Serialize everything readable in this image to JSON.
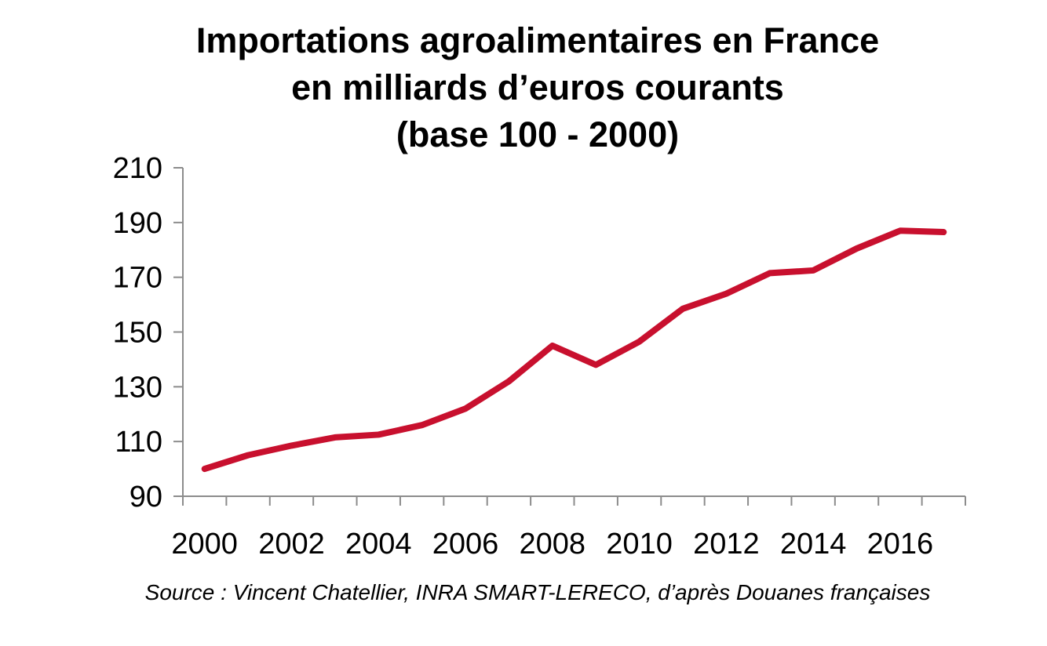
{
  "chart_data": {
    "type": "line",
    "title": [
      "Importations agroalimentaires en France",
      "en milliards d’euros courants",
      "(base 100 - 2000)"
    ],
    "xlabel": "",
    "ylabel": "",
    "x": [
      2000,
      2001,
      2002,
      2003,
      2004,
      2005,
      2006,
      2007,
      2008,
      2009,
      2010,
      2011,
      2012,
      2013,
      2014,
      2015,
      2016,
      2017
    ],
    "x_tick_labels": [
      "2000",
      "2002",
      "2004",
      "2006",
      "2008",
      "2010",
      "2012",
      "2014",
      "2016"
    ],
    "y_tick_labels": [
      "90",
      "110",
      "130",
      "150",
      "170",
      "190",
      "210"
    ],
    "ylim": [
      90,
      210
    ],
    "y_ticks": [
      90,
      110,
      130,
      150,
      170,
      190,
      210
    ],
    "grid": false,
    "series": [
      {
        "name": "Importations agroalimentaires (base 100 - 2000)",
        "color": "#c8102e",
        "values": [
          100,
          105,
          108.5,
          111.5,
          112.5,
          116,
          122,
          132,
          145,
          138,
          146.5,
          158.5,
          164,
          171.5,
          172.5,
          180.5,
          187,
          186.5
        ]
      }
    ]
  },
  "source": "Source : Vincent Chatellier, INRA SMART-LERECO, d’après Douanes françaises"
}
